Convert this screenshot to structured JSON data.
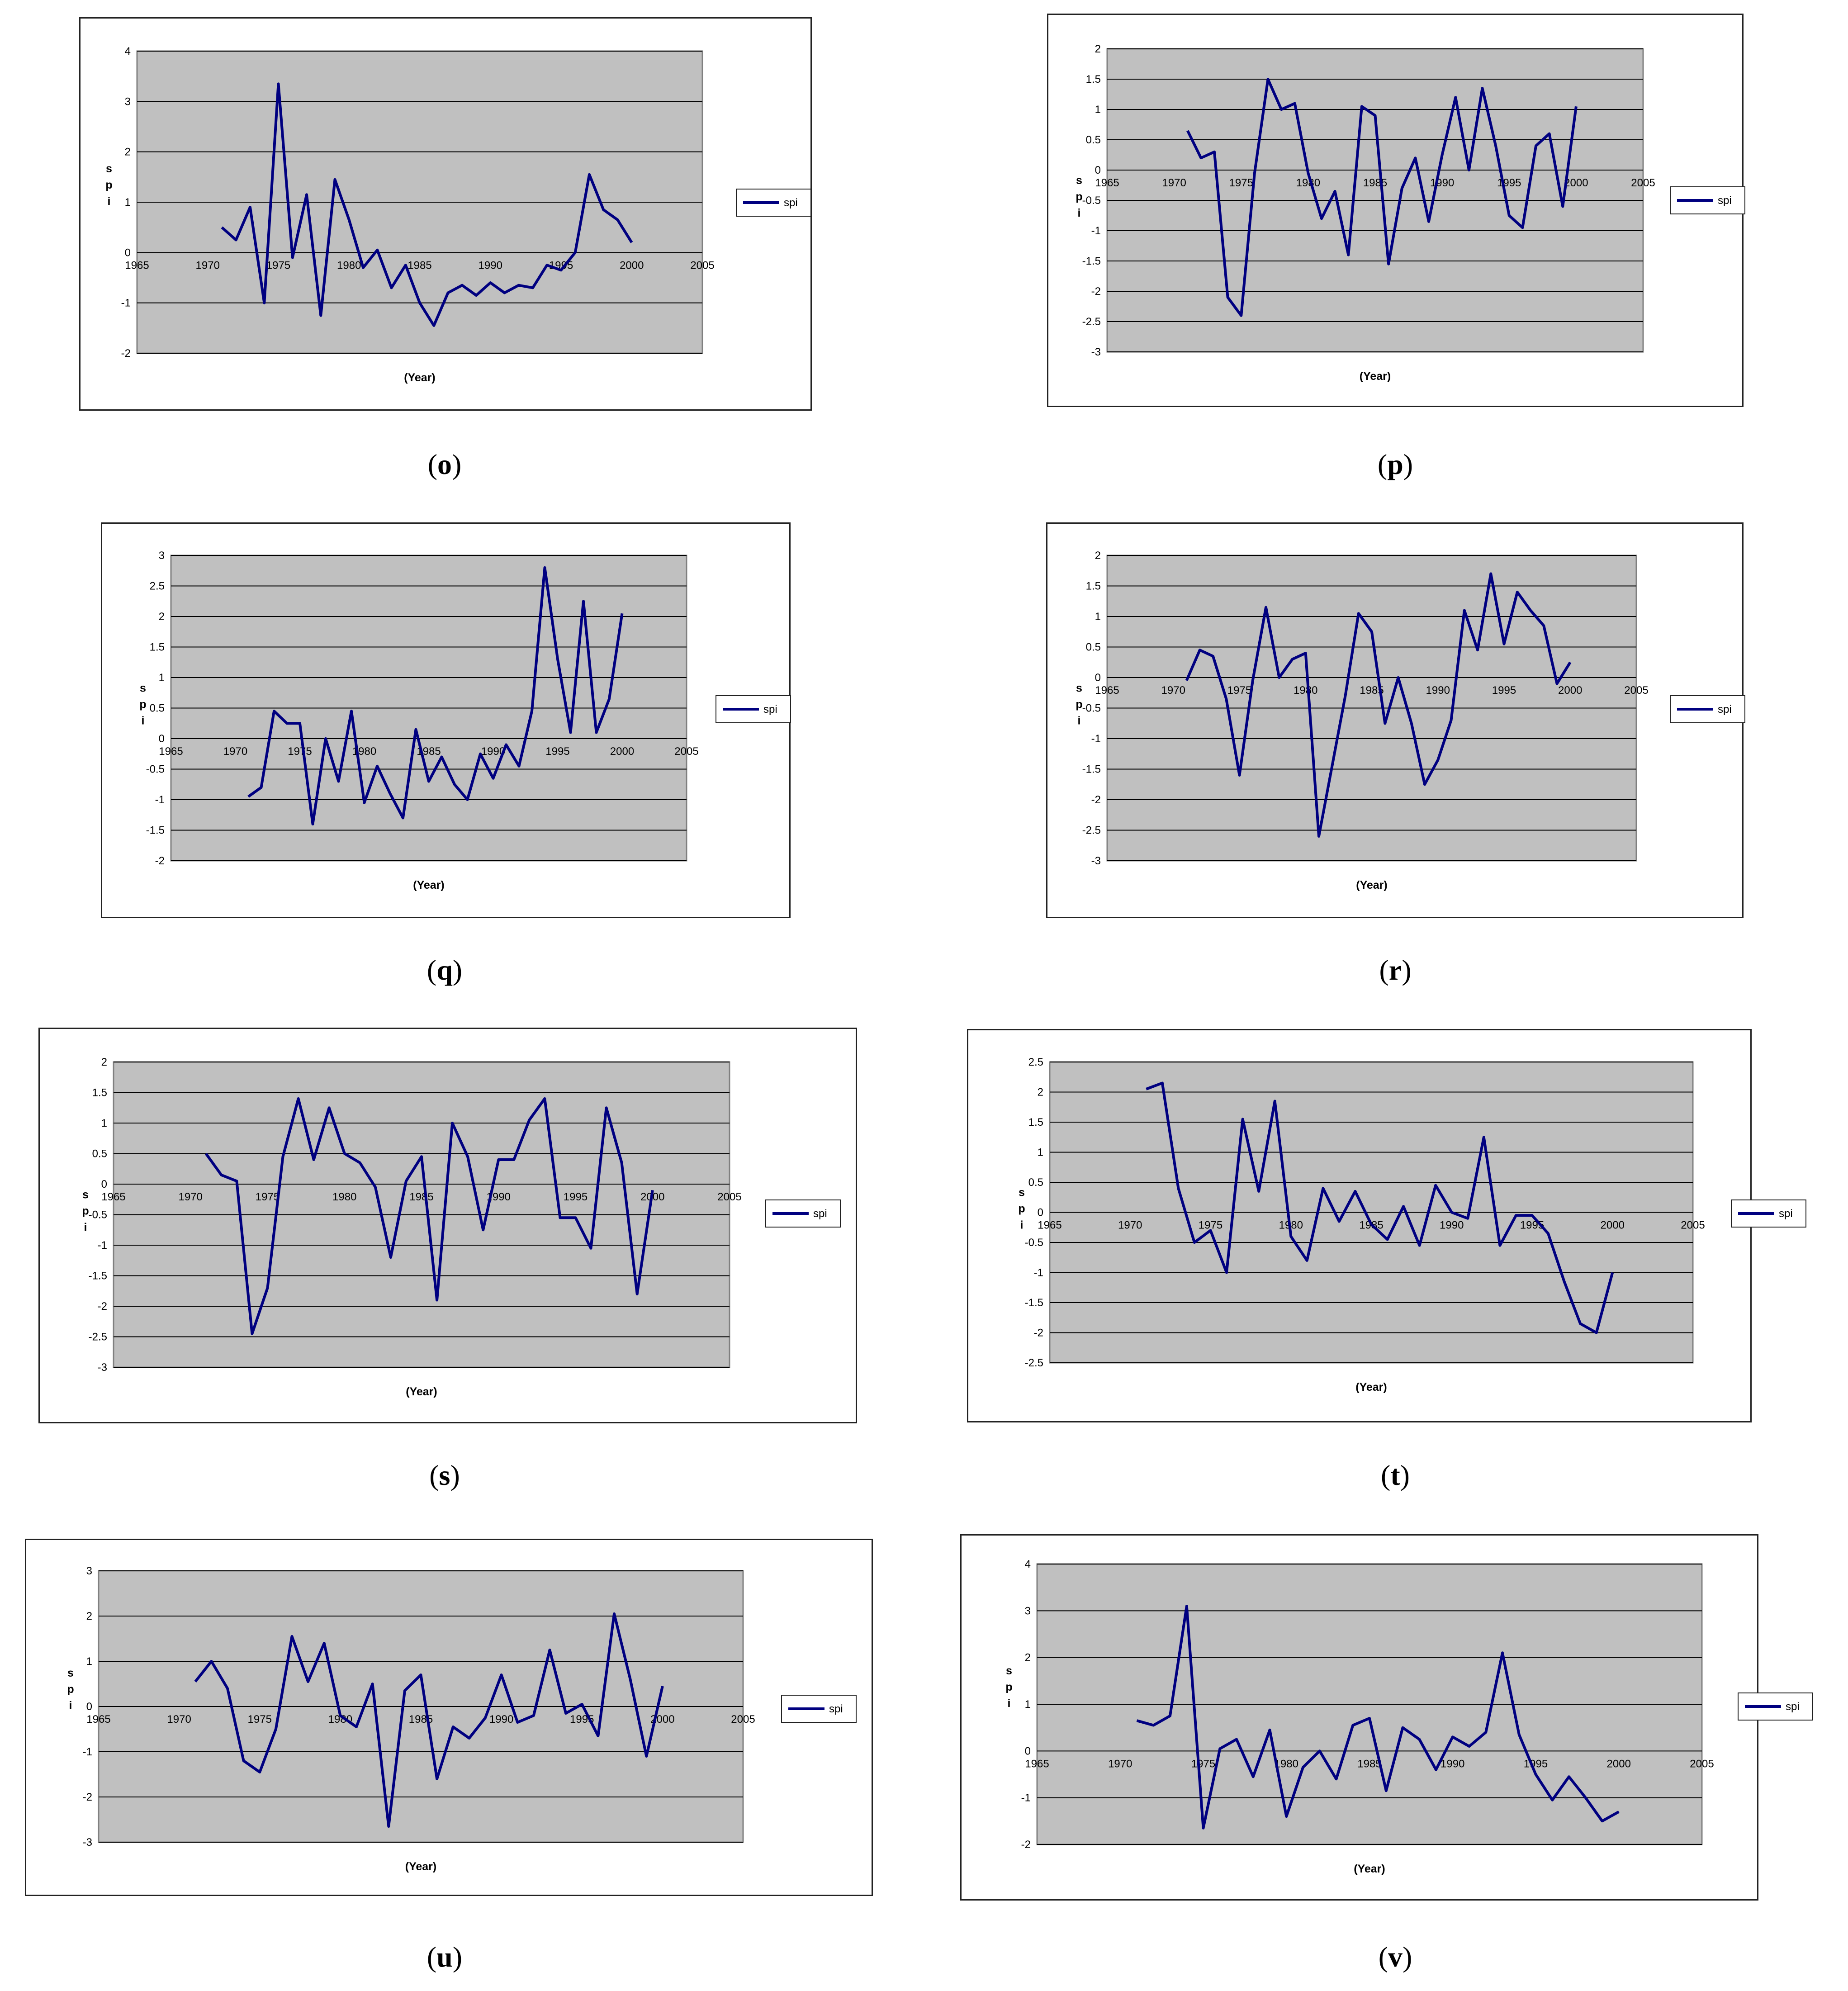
{
  "chart_data": [
    {
      "id": "o",
      "type": "line",
      "panel_label": "o",
      "xlabel": "(Year)",
      "ylabel": "s p i",
      "xlim": [
        1965,
        2005
      ],
      "xticks": [
        1965,
        1970,
        1975,
        1980,
        1985,
        1990,
        1995,
        2000,
        2005
      ],
      "xtick_labels": [
        "1965",
        "1970",
        "1975",
        "1980",
        "1985",
        "1990",
        "1995",
        "2000",
        "2005"
      ],
      "ylim": [
        -2,
        4
      ],
      "yticks": [
        -2,
        -1,
        0,
        1,
        2,
        3,
        4
      ],
      "ytick_labels": [
        "-2",
        "-1",
        "0",
        "1",
        "2",
        "3",
        "4"
      ],
      "grid": true,
      "legend_position": "right",
      "series": [
        {
          "name": "spi",
          "x": [
            1971,
            1972,
            1973,
            1974,
            1975,
            1976,
            1977,
            1978,
            1979,
            1980,
            1981,
            1982,
            1983,
            1984,
            1985,
            1986,
            1987,
            1988,
            1989,
            1990,
            1991,
            1992,
            1993,
            1994,
            1995,
            1996,
            1997,
            1998,
            1999,
            2000
          ],
          "values": [
            0.5,
            0.25,
            0.9,
            -1.0,
            3.35,
            -0.1,
            1.15,
            -1.25,
            1.45,
            0.65,
            -0.3,
            0.05,
            -0.7,
            -0.25,
            -1.0,
            -1.45,
            -0.8,
            -0.65,
            -0.85,
            -0.6,
            -0.8,
            -0.65,
            -0.7,
            -0.25,
            -0.35,
            0.0,
            1.55,
            0.85,
            0.65,
            0.2
          ]
        }
      ]
    },
    {
      "id": "p",
      "type": "line",
      "panel_label": "p",
      "xlabel": "(Year)",
      "ylabel": "s p i",
      "xlim": [
        1965,
        2005
      ],
      "xticks": [
        1965,
        1970,
        1975,
        1980,
        1985,
        1990,
        1995,
        2000,
        2005
      ],
      "xtick_labels": [
        "1965",
        "1970",
        "1975",
        "1980",
        "1985",
        "1990",
        "1995",
        "2000",
        "2005"
      ],
      "ylim": [
        -3,
        2
      ],
      "yticks": [
        -3,
        -2.5,
        -2,
        -1.5,
        -1,
        -0.5,
        0,
        0.5,
        1,
        1.5,
        2
      ],
      "ytick_labels": [
        "-3",
        "-2.5",
        "-2",
        "-1.5",
        "-1",
        "-0.5",
        "0",
        "0.5",
        "1",
        "1.5",
        "2"
      ],
      "grid": true,
      "legend_position": "right",
      "series": [
        {
          "name": "spi",
          "x": [
            1971,
            1972,
            1973,
            1974,
            1975,
            1976,
            1977,
            1978,
            1979,
            1980,
            1981,
            1982,
            1983,
            1984,
            1985,
            1986,
            1987,
            1988,
            1989,
            1990,
            1991,
            1992,
            1993,
            1994,
            1995,
            1996,
            1997,
            1998,
            1999,
            2000
          ],
          "values": [
            0.65,
            0.2,
            0.3,
            -2.1,
            -2.4,
            -0.05,
            1.5,
            1.0,
            1.1,
            -0.05,
            -0.8,
            -0.35,
            -1.4,
            1.05,
            0.9,
            -1.55,
            -0.3,
            0.2,
            -0.85,
            0.25,
            1.2,
            0.0,
            1.35,
            0.4,
            -0.75,
            -0.95,
            0.4,
            0.6,
            -0.6,
            1.05
          ]
        }
      ]
    },
    {
      "id": "q",
      "type": "line",
      "panel_label": "q",
      "xlabel": "(Year)",
      "ylabel": "s p i",
      "xlim": [
        1965,
        2005
      ],
      "xticks": [
        1965,
        1970,
        1975,
        1980,
        1985,
        1990,
        1995,
        2000,
        2005
      ],
      "xtick_labels": [
        "1965",
        "1970",
        "1975",
        "1980",
        "1985",
        "1990",
        "1995",
        "2000",
        "2005"
      ],
      "ylim": [
        -2,
        3
      ],
      "yticks": [
        -2,
        -1.5,
        -1,
        -0.5,
        0,
        0.5,
        1,
        1.5,
        2,
        2.5,
        3
      ],
      "ytick_labels": [
        "-2",
        "-1.5",
        "-1",
        "-0.5",
        "0",
        "0.5",
        "1",
        "1.5",
        "2",
        "2.5",
        "3"
      ],
      "grid": true,
      "legend_position": "right",
      "series": [
        {
          "name": "spi",
          "x": [
            1971,
            1972,
            1973,
            1974,
            1975,
            1976,
            1977,
            1978,
            1979,
            1980,
            1981,
            1982,
            1983,
            1984,
            1985,
            1986,
            1987,
            1988,
            1989,
            1990,
            1991,
            1992,
            1993,
            1994,
            1995,
            1996,
            1997,
            1998,
            1999,
            2000
          ],
          "values": [
            -0.95,
            -0.8,
            0.45,
            0.25,
            0.25,
            -1.4,
            0.0,
            -0.7,
            0.45,
            -1.05,
            -0.45,
            -0.9,
            -1.3,
            0.15,
            -0.7,
            -0.3,
            -0.75,
            -1.0,
            -0.25,
            -0.65,
            -0.1,
            -0.45,
            0.45,
            2.8,
            1.3,
            0.1,
            2.25,
            0.1,
            0.65,
            2.05
          ]
        }
      ]
    },
    {
      "id": "r",
      "type": "line",
      "panel_label": "r",
      "xlabel": "(Year)",
      "ylabel": "s p i",
      "xlim": [
        1965,
        2005
      ],
      "xticks": [
        1965,
        1970,
        1975,
        1980,
        1985,
        1990,
        1995,
        2000,
        2005
      ],
      "xtick_labels": [
        "1965",
        "1970",
        "1975",
        "1980",
        "1985",
        "1990",
        "1995",
        "2000",
        "2005"
      ],
      "ylim": [
        -3,
        2
      ],
      "yticks": [
        -3,
        -2.5,
        -2,
        -1.5,
        -1,
        -0.5,
        0,
        0.5,
        1,
        1.5,
        2
      ],
      "ytick_labels": [
        "-3",
        "-2.5",
        "-2",
        "-1.5",
        "-1",
        "-0.5",
        "0",
        "0.5",
        "1",
        "1.5",
        "2"
      ],
      "grid": true,
      "legend_position": "right",
      "series": [
        {
          "name": "spi",
          "x": [
            1971,
            1972,
            1973,
            1974,
            1975,
            1976,
            1977,
            1978,
            1979,
            1980,
            1981,
            1982,
            1983,
            1984,
            1985,
            1986,
            1987,
            1988,
            1989,
            1990,
            1991,
            1992,
            1993,
            1994,
            1995,
            1996,
            1997,
            1998,
            1999,
            2000
          ],
          "values": [
            -0.05,
            0.45,
            0.35,
            -0.35,
            -1.6,
            -0.05,
            1.15,
            0.0,
            0.3,
            0.4,
            -2.6,
            -1.45,
            -0.3,
            1.05,
            0.75,
            -0.75,
            0.0,
            -0.75,
            -1.75,
            -1.35,
            -0.7,
            1.1,
            0.45,
            1.7,
            0.55,
            1.4,
            1.1,
            0.85,
            -0.1,
            0.25
          ]
        }
      ]
    },
    {
      "id": "s",
      "type": "line",
      "panel_label": "s",
      "xlabel": "(Year)",
      "ylabel": "s p i",
      "xlim": [
        1965,
        2005
      ],
      "xticks": [
        1965,
        1970,
        1975,
        1980,
        1985,
        1990,
        1995,
        2000,
        2005
      ],
      "xtick_labels": [
        "1965",
        "1970",
        "1975",
        "1980",
        "1985",
        "1990",
        "1995",
        "2000",
        "2005"
      ],
      "ylim": [
        -3,
        2
      ],
      "yticks": [
        -3,
        -2.5,
        -2,
        -1.5,
        -1,
        -0.5,
        0,
        0.5,
        1,
        1.5,
        2
      ],
      "ytick_labels": [
        "-3",
        "-2.5",
        "-2",
        "-1.5",
        "-1",
        "-0.5",
        "0",
        "0.5",
        "1",
        "1.5",
        "2"
      ],
      "grid": true,
      "legend_position": "right",
      "series": [
        {
          "name": "spi",
          "x": [
            1971,
            1972,
            1973,
            1974,
            1975,
            1976,
            1977,
            1978,
            1979,
            1980,
            1981,
            1982,
            1983,
            1984,
            1985,
            1986,
            1987,
            1988,
            1989,
            1990,
            1991,
            1992,
            1993,
            1994,
            1995,
            1996,
            1997,
            1998,
            1999,
            2000
          ],
          "values": [
            0.5,
            0.15,
            0.05,
            -2.45,
            -1.7,
            0.45,
            1.4,
            0.4,
            1.25,
            0.5,
            0.35,
            -0.05,
            -1.2,
            0.05,
            0.45,
            -1.9,
            1.0,
            0.45,
            -0.75,
            0.4,
            0.4,
            1.05,
            1.4,
            -0.55,
            -0.55,
            -1.05,
            1.25,
            0.35,
            -1.8,
            -0.1
          ]
        }
      ]
    },
    {
      "id": "t",
      "type": "line",
      "panel_label": "t",
      "xlabel": "(Year)",
      "ylabel": "s p i",
      "xlim": [
        1965,
        2005
      ],
      "xticks": [
        1965,
        1970,
        1975,
        1980,
        1985,
        1990,
        1995,
        2000,
        2005
      ],
      "xtick_labels": [
        "1965",
        "1970",
        "1975",
        "1980",
        "1985",
        "1990",
        "1995",
        "2000",
        "2005"
      ],
      "ylim": [
        -2.5,
        2.5
      ],
      "yticks": [
        -2.5,
        -2,
        -1.5,
        -1,
        -0.5,
        0,
        0.5,
        1,
        1.5,
        2,
        2.5
      ],
      "ytick_labels": [
        "-2.5",
        "-2",
        "-1.5",
        "-1",
        "-0.5",
        "0",
        "0.5",
        "1",
        "1.5",
        "2",
        "2.5"
      ],
      "grid": true,
      "legend_position": "right",
      "series": [
        {
          "name": "spi",
          "x": [
            1971,
            1972,
            1973,
            1974,
            1975,
            1976,
            1977,
            1978,
            1979,
            1980,
            1981,
            1982,
            1983,
            1984,
            1985,
            1986,
            1987,
            1988,
            1989,
            1990,
            1991,
            1992,
            1993,
            1994,
            1995,
            1996,
            1997,
            1998,
            1999,
            2000
          ],
          "values": [
            2.05,
            2.15,
            0.4,
            -0.5,
            -0.3,
            -1.0,
            1.55,
            0.35,
            1.85,
            -0.4,
            -0.8,
            0.4,
            -0.15,
            0.35,
            -0.2,
            -0.45,
            0.1,
            -0.55,
            0.45,
            0.0,
            -0.1,
            1.25,
            -0.55,
            -0.05,
            -0.05,
            -0.35,
            -1.15,
            -1.85,
            -2.0,
            -1.0
          ]
        }
      ]
    },
    {
      "id": "u",
      "type": "line",
      "panel_label": "u",
      "xlabel": "(Year)",
      "ylabel": "s p i",
      "xlim": [
        1965,
        2005
      ],
      "xticks": [
        1965,
        1970,
        1975,
        1980,
        1985,
        1990,
        1995,
        2000,
        2005
      ],
      "xtick_labels": [
        "1965",
        "1970",
        "1975",
        "1980",
        "1985",
        "1990",
        "1995",
        "2000",
        "2005"
      ],
      "ylim": [
        -3,
        3
      ],
      "yticks": [
        -3,
        -2,
        -1,
        0,
        1,
        2,
        3
      ],
      "ytick_labels": [
        "-3",
        "-2",
        "-1",
        "0",
        "1",
        "2",
        "3"
      ],
      "grid": true,
      "legend_position": "right",
      "series": [
        {
          "name": "spi",
          "x": [
            1971,
            1972,
            1973,
            1974,
            1975,
            1976,
            1977,
            1978,
            1979,
            1980,
            1981,
            1982,
            1983,
            1984,
            1985,
            1986,
            1987,
            1988,
            1989,
            1990,
            1991,
            1992,
            1993,
            1994,
            1995,
            1996,
            1997,
            1998,
            1999,
            2000
          ],
          "values": [
            0.55,
            1.0,
            0.4,
            -1.2,
            -1.45,
            -0.5,
            1.55,
            0.55,
            1.4,
            -0.2,
            -0.45,
            0.5,
            -2.65,
            0.35,
            0.7,
            -1.6,
            -0.45,
            -0.7,
            -0.25,
            0.7,
            -0.35,
            -0.2,
            1.25,
            -0.15,
            0.05,
            -0.65,
            2.05,
            0.6,
            -1.1,
            0.45
          ]
        }
      ]
    },
    {
      "id": "v",
      "type": "line",
      "panel_label": "v",
      "xlabel": "(Year)",
      "ylabel": "s p i",
      "xlim": [
        1965,
        2005
      ],
      "xticks": [
        1965,
        1970,
        1975,
        1980,
        1985,
        1990,
        1995,
        2000,
        2005
      ],
      "xtick_labels": [
        "1965",
        "1970",
        "1975",
        "1980",
        "1985",
        "1990",
        "1995",
        "2000",
        "2005"
      ],
      "ylim": [
        -2,
        4
      ],
      "yticks": [
        -2,
        -1,
        0,
        1,
        2,
        3,
        4
      ],
      "ytick_labels": [
        "-2",
        "-1",
        "0",
        "1",
        "2",
        "3",
        "4"
      ],
      "grid": true,
      "legend_position": "right",
      "series": [
        {
          "name": "spi",
          "x": [
            1971,
            1972,
            1973,
            1974,
            1975,
            1976,
            1977,
            1978,
            1979,
            1980,
            1981,
            1982,
            1983,
            1984,
            1985,
            1986,
            1987,
            1988,
            1989,
            1990,
            1991,
            1992,
            1993,
            1994,
            1995,
            1996,
            1997,
            1998,
            1999,
            2000
          ],
          "values": [
            0.65,
            0.55,
            0.75,
            3.1,
            -1.65,
            0.05,
            0.25,
            -0.55,
            0.45,
            -1.4,
            -0.35,
            0.0,
            -0.6,
            0.55,
            0.7,
            -0.85,
            0.5,
            0.25,
            -0.4,
            0.3,
            0.1,
            0.4,
            2.1,
            0.35,
            -0.5,
            -1.05,
            -0.55,
            -1.0,
            -1.5,
            -1.3
          ]
        }
      ]
    }
  ]
}
